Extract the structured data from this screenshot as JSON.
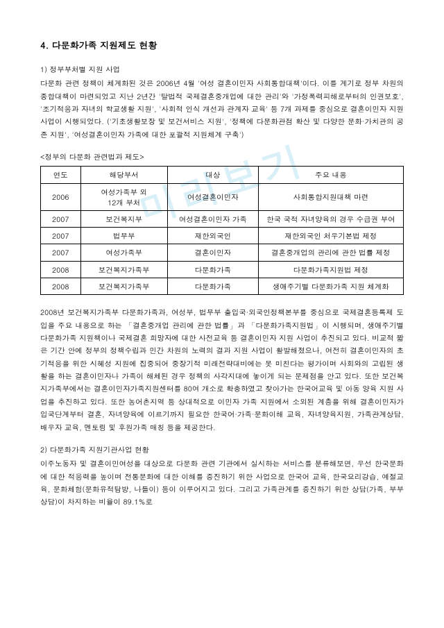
{
  "watermark": "미리보기",
  "heading": "4. 다문화가족 지원제도 현황",
  "section1": {
    "title": "1) 정부부처별 지원 사업",
    "para": "다문화 관련 정책이 체계화된 것은 2006년 4월 '여성 결혼이민자 사회통합대책'이다. 이를 계기로 정부 차원의 종합대책이 마련되었고 지난 2년간 '탈법적 국제결혼중개업에 대한 관리'와 '가정폭력피해로부터의 인권보호', '조기적응과 자녀의 학교생활 지원', '사회적 인식 개선과 관계자 교육' 등 7개 과제를 중심으로 결혼이민자 지원 사업이 시행되었다. ('기초생활보장 및 보건서비스 지원', '정책에 다문화관점 확산 및 다양한 문화·가치관의 공존 지원', '여성결혼이민자 가족에 대한 포괄적 지원체계 구축')"
  },
  "tableCaption": "<정부의 다문화 관련법과 제도>",
  "tableHeaders": {
    "c1": "연도",
    "c2": "해당부서",
    "c3": "대상",
    "c4": "주요 내용"
  },
  "rows": [
    {
      "c1": "2006",
      "c2": "여성가족부 외\n12개 부처",
      "c3": "여성결혼이민자",
      "c4": "사회통합지원대책 마련"
    },
    {
      "c1": "2007",
      "c2": "보건복지부",
      "c3": "여성결혼이민자 가족",
      "c4": "한국 국적 자녀양육의 경우 수급권 부여"
    },
    {
      "c1": "2007",
      "c2": "법무부",
      "c3": "재한외국인",
      "c4": "재한외국인 처우기본법 제정"
    },
    {
      "c1": "2007",
      "c2": "여성가족부",
      "c3": "결혼이민자",
      "c4": "결혼중개업의 관리에 관한 법률 제정"
    },
    {
      "c1": "2008",
      "c2": "보건복지가족부",
      "c3": "다문화가족",
      "c4": "다문화가족지원법 제정"
    },
    {
      "c1": "2008",
      "c2": "보건복지가족부",
      "c3": "다문화가족",
      "c4": "생애주기별 다문화가족 지원 체계화"
    }
  ],
  "para2": "2008년 보건복지가족부 다문화가족과, 여성부, 법무부 출입국·외국인정책본부를 중심으로 국제결혼등록제 도입을 주요 내용으로 하는 「결혼중개업 관리에 관한 법률」과 「다문화가족지원법」이 시행되며, 생애주기별 다문화가족 지원책이나 국제결혼 희망자에 대한 사전교육 등 결혼이민자 지원 사업이 추진되고 있다. 비교적 짧은 기간 안에 정부의 정책수립과 민간 차원의 노력의 결과 지원 사업이 활발해졌으나, 여전히 결혼이민자의 초기적응을 위한 시혜성 지원에 집중되어 중장기적 미래전략대비에는 못 미친다는 평가이며 사회와의 고립된 생활을 하는 결혼이민자나 가족이 해체된 경우 정책의 사각지대에 놓이게 되는 문제점을 안고 있다. 또한 보건복지가족부에서는 결혼이민자가족지원센터를 80여 개소로 확충하였고 찾아가는 한국어교육 및 아동 양육 지원 사업을 추진하고 있다. 또한 농어촌지역 등 상대적으로 이민자 가족 지원에서 소외된 계층을 위해 결혼이민자가 입국단계부터 결혼, 자녀양육에 이르기까지 필요한 한국어·가족·문화이해 교육, 자녀양육지원, 가족관계상담, 배우자 교육, 멘토링 및 후원가족 매칭 등을 제공한다.",
  "section2": {
    "title": "2) 다문화가족 지원기관사업 현황",
    "para": "이주노동자 및 결혼이민여성을 대상으로 다문화 관련 기관에서 실시하는 서비스를 분류해보면, 우선 한국문화에 대한 적응력을 높이며 전통문화에 대한 이해를 증진하기 위한 사업으로 한국어 교육, 한국요리강습, 예절교육, 문화체험(문화유적탐방, 나들이) 등이 이루어지고 있다. 그리고 가족관계를 증진하기 위한 상담(가족, 부부상담)이 차지하는 비율이 89.1%로"
  }
}
